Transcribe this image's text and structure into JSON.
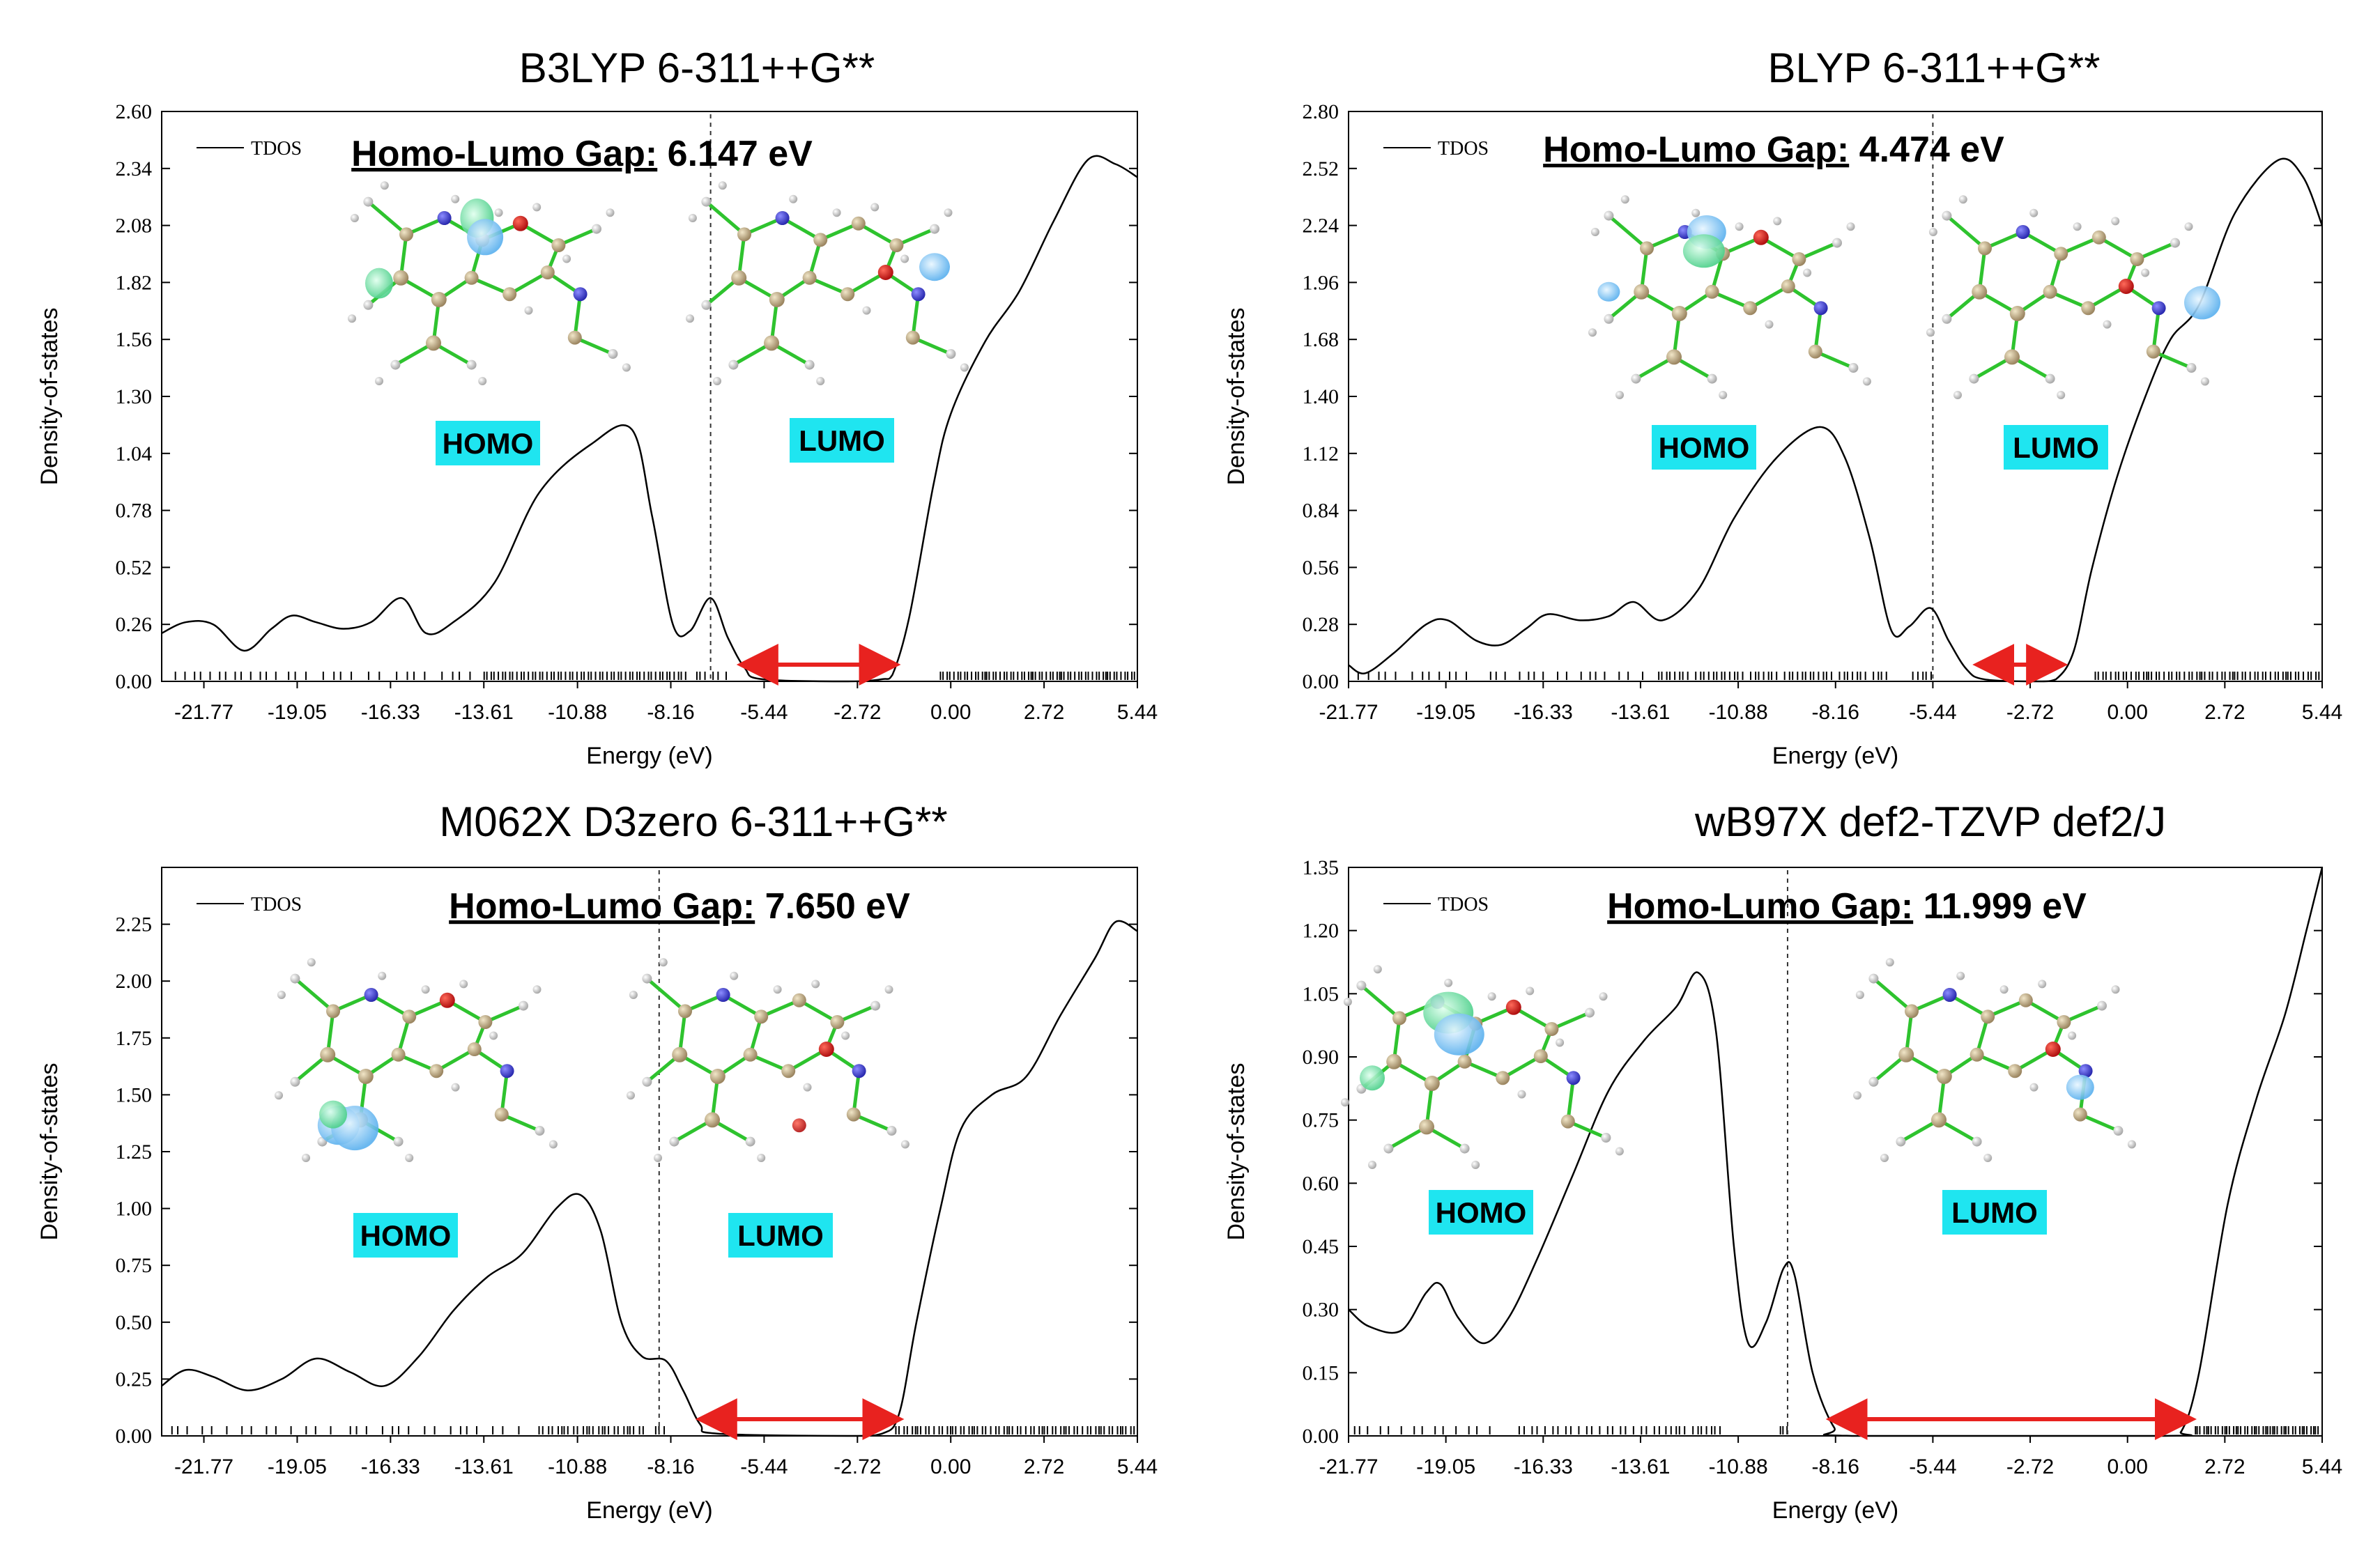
{
  "chart_data": [
    {
      "type": "line",
      "title": "B3LYP 6-311++G**",
      "xlabel": "Energy (eV)",
      "ylabel": "Density-of-states",
      "legend": "TDOS",
      "legend_position": "top-left",
      "xlim": [
        -23.0,
        5.44
      ],
      "ylim": [
        0,
        2.6
      ],
      "x_ticks": [
        "-21.77",
        "-19.05",
        "-16.33",
        "-13.61",
        "-10.88",
        "-8.16",
        "-5.44",
        "-2.72",
        "0.00",
        "2.72",
        "5.44"
      ],
      "y_ticks": [
        "0.00",
        "0.26",
        "0.52",
        "0.78",
        "1.04",
        "1.30",
        "1.56",
        "1.82",
        "2.08",
        "2.34",
        "2.60"
      ],
      "gap_prefix": "Homo-Lumo Gap:",
      "gap_value": "6.147 eV",
      "homo_label": "HOMO",
      "lumo_label": "LUMO",
      "homo_energy": -7.0,
      "arrow": [
        -6.0,
        -1.7
      ],
      "points": [
        [
          -23,
          0.22
        ],
        [
          -22.3,
          0.27
        ],
        [
          -21.5,
          0.26
        ],
        [
          -20.6,
          0.14
        ],
        [
          -19.8,
          0.24
        ],
        [
          -19.2,
          0.3
        ],
        [
          -18.5,
          0.27
        ],
        [
          -17.7,
          0.24
        ],
        [
          -16.9,
          0.27
        ],
        [
          -16.0,
          0.38
        ],
        [
          -15.3,
          0.22
        ],
        [
          -14.5,
          0.27
        ],
        [
          -13.3,
          0.45
        ],
        [
          -12.0,
          0.86
        ],
        [
          -10.5,
          1.08
        ],
        [
          -9.3,
          1.15
        ],
        [
          -8.7,
          0.75
        ],
        [
          -8.1,
          0.26
        ],
        [
          -7.6,
          0.23
        ],
        [
          -7.0,
          0.38
        ],
        [
          -6.5,
          0.2
        ],
        [
          -6.0,
          0.06
        ],
        [
          -5.5,
          0.01
        ],
        [
          -3.0,
          0.0
        ],
        [
          -2.0,
          0.01
        ],
        [
          -1.7,
          0.03
        ],
        [
          -1.2,
          0.3
        ],
        [
          -0.5,
          0.9
        ],
        [
          0.0,
          1.22
        ],
        [
          1.0,
          1.55
        ],
        [
          2.0,
          1.78
        ],
        [
          3.0,
          2.1
        ],
        [
          4.0,
          2.38
        ],
        [
          4.8,
          2.36
        ],
        [
          5.44,
          2.3
        ]
      ],
      "stick_ranges": [
        [
          -22.6,
          -19.5,
          13
        ],
        [
          -19.3,
          -13.7,
          17
        ],
        [
          -13.6,
          -7.6,
          55
        ],
        [
          -7.4,
          -6.4,
          6
        ],
        [
          -0.3,
          5.4,
          60
        ]
      ]
    },
    {
      "type": "line",
      "title": "BLYP 6-311++G**",
      "xlabel": "Energy (eV)",
      "ylabel": "Density-of-states",
      "legend": "TDOS",
      "legend_position": "top-left",
      "xlim": [
        -21.77,
        5.44
      ],
      "ylim": [
        0,
        2.8
      ],
      "x_ticks": [
        "-21.77",
        "-19.05",
        "-16.33",
        "-13.61",
        "-10.88",
        "-8.16",
        "-5.44",
        "-2.72",
        "0.00",
        "2.72",
        "5.44"
      ],
      "y_ticks": [
        "0.00",
        "0.28",
        "0.56",
        "0.84",
        "1.12",
        "1.40",
        "1.68",
        "1.96",
        "2.24",
        "2.52",
        "2.80"
      ],
      "gap_prefix": "Homo-Lumo Gap:",
      "gap_value": "4.474 eV",
      "homo_label": "HOMO",
      "lumo_label": "LUMO",
      "homo_energy": -5.44,
      "arrow": [
        -4.1,
        -1.9
      ],
      "points": [
        [
          -21.77,
          0.08
        ],
        [
          -21.3,
          0.04
        ],
        [
          -20.5,
          0.14
        ],
        [
          -19.6,
          0.28
        ],
        [
          -19.0,
          0.3
        ],
        [
          -18.2,
          0.2
        ],
        [
          -17.5,
          0.18
        ],
        [
          -16.8,
          0.26
        ],
        [
          -16.2,
          0.33
        ],
        [
          -15.3,
          0.3
        ],
        [
          -14.5,
          0.32
        ],
        [
          -13.8,
          0.39
        ],
        [
          -13.0,
          0.3
        ],
        [
          -12.0,
          0.45
        ],
        [
          -11.0,
          0.8
        ],
        [
          -9.8,
          1.1
        ],
        [
          -8.6,
          1.25
        ],
        [
          -7.9,
          1.1
        ],
        [
          -7.2,
          0.7
        ],
        [
          -6.6,
          0.25
        ],
        [
          -6.1,
          0.27
        ],
        [
          -5.5,
          0.36
        ],
        [
          -5.0,
          0.2
        ],
        [
          -4.5,
          0.06
        ],
        [
          -4.0,
          0.01
        ],
        [
          -2.5,
          0.0
        ],
        [
          -2.0,
          0.01
        ],
        [
          -1.5,
          0.15
        ],
        [
          -1.0,
          0.55
        ],
        [
          -0.3,
          1.0
        ],
        [
          0.5,
          1.4
        ],
        [
          1.2,
          1.68
        ],
        [
          2.0,
          1.85
        ],
        [
          3.0,
          2.3
        ],
        [
          4.2,
          2.56
        ],
        [
          4.9,
          2.48
        ],
        [
          5.44,
          2.24
        ]
      ],
      "stick_ranges": [
        [
          -21.5,
          -18.3,
          12
        ],
        [
          -17.8,
          -13.3,
          16
        ],
        [
          -13.1,
          -6.6,
          50
        ],
        [
          -6.0,
          -5.4,
          5
        ],
        [
          -0.9,
          5.4,
          60
        ]
      ]
    },
    {
      "type": "line",
      "title": "M062X D3zero 6-311++G**",
      "xlabel": "Energy (eV)",
      "ylabel": "Density-of-states",
      "legend": "TDOS",
      "legend_position": "top-left",
      "xlim": [
        -23.0,
        5.44
      ],
      "ylim": [
        0,
        2.5
      ],
      "x_ticks": [
        "-21.77",
        "-19.05",
        "-16.33",
        "-13.61",
        "-10.88",
        "-8.16",
        "-5.44",
        "-2.72",
        "0.00",
        "2.72",
        "5.44"
      ],
      "y_ticks": [
        "0.00",
        "0.25",
        "0.50",
        "0.75",
        "1.00",
        "1.25",
        "1.50",
        "1.75",
        "2.00",
        "2.25"
      ],
      "gap_prefix": "Homo-Lumo Gap:",
      "gap_value": "7.650 eV",
      "homo_label": "HOMO",
      "lumo_label": "LUMO",
      "homo_energy": -8.5,
      "arrow": [
        -7.2,
        -1.6
      ],
      "points": [
        [
          -23,
          0.22
        ],
        [
          -22.3,
          0.29
        ],
        [
          -21.5,
          0.26
        ],
        [
          -20.5,
          0.2
        ],
        [
          -19.5,
          0.25
        ],
        [
          -18.5,
          0.34
        ],
        [
          -17.5,
          0.28
        ],
        [
          -16.5,
          0.22
        ],
        [
          -15.5,
          0.35
        ],
        [
          -14.5,
          0.55
        ],
        [
          -13.5,
          0.7
        ],
        [
          -12.5,
          0.8
        ],
        [
          -11.5,
          1.0
        ],
        [
          -10.8,
          1.06
        ],
        [
          -10.2,
          0.9
        ],
        [
          -9.6,
          0.5
        ],
        [
          -9.0,
          0.35
        ],
        [
          -8.3,
          0.33
        ],
        [
          -7.8,
          0.2
        ],
        [
          -7.3,
          0.05
        ],
        [
          -6.8,
          0.01
        ],
        [
          -3.0,
          0.0
        ],
        [
          -2.0,
          0.01
        ],
        [
          -1.5,
          0.1
        ],
        [
          -1.0,
          0.5
        ],
        [
          -0.3,
          1.0
        ],
        [
          0.3,
          1.35
        ],
        [
          1.2,
          1.5
        ],
        [
          2.2,
          1.58
        ],
        [
          3.2,
          1.85
        ],
        [
          4.2,
          2.1
        ],
        [
          4.8,
          2.26
        ],
        [
          5.44,
          2.22
        ]
      ],
      "stick_ranges": [
        [
          -22.7,
          -17.8,
          14
        ],
        [
          -17.5,
          -12.3,
          16
        ],
        [
          -12.0,
          -8.9,
          26
        ],
        [
          -8.6,
          -8.2,
          3
        ],
        [
          -1.6,
          5.4,
          64
        ]
      ]
    },
    {
      "type": "line",
      "title": "wB97X def2-TZVP def2/J",
      "xlabel": "Energy (eV)",
      "ylabel": "Density-of-states",
      "legend": "TDOS",
      "legend_position": "top-left",
      "xlim": [
        -21.77,
        5.44
      ],
      "ylim": [
        0,
        1.35
      ],
      "x_ticks": [
        "-21.77",
        "-19.05",
        "-16.33",
        "-13.61",
        "-10.88",
        "-8.16",
        "-5.44",
        "-2.72",
        "0.00",
        "2.72",
        "5.44"
      ],
      "y_ticks": [
        "0.00",
        "0.15",
        "0.30",
        "0.45",
        "0.60",
        "0.75",
        "0.90",
        "1.05",
        "1.20",
        "1.35"
      ],
      "gap_prefix": "Homo-Lumo Gap:",
      "gap_value": "11.999 eV",
      "homo_label": "HOMO",
      "lumo_label": "LUMO",
      "homo_energy": -9.5,
      "arrow": [
        -8.2,
        1.7
      ],
      "points": [
        [
          -21.77,
          0.3
        ],
        [
          -21.2,
          0.26
        ],
        [
          -20.3,
          0.25
        ],
        [
          -19.6,
          0.34
        ],
        [
          -19.2,
          0.36
        ],
        [
          -18.7,
          0.28
        ],
        [
          -18.0,
          0.22
        ],
        [
          -17.3,
          0.28
        ],
        [
          -16.5,
          0.42
        ],
        [
          -15.5,
          0.62
        ],
        [
          -14.5,
          0.82
        ],
        [
          -13.5,
          0.94
        ],
        [
          -12.6,
          1.02
        ],
        [
          -12.0,
          1.1
        ],
        [
          -11.5,
          0.96
        ],
        [
          -11.0,
          0.45
        ],
        [
          -10.6,
          0.22
        ],
        [
          -10.1,
          0.27
        ],
        [
          -9.6,
          0.4
        ],
        [
          -9.3,
          0.38
        ],
        [
          -8.8,
          0.15
        ],
        [
          -8.2,
          0.02
        ],
        [
          -7.7,
          0.0
        ],
        [
          1.0,
          0.0
        ],
        [
          1.5,
          0.01
        ],
        [
          2.0,
          0.15
        ],
        [
          2.8,
          0.55
        ],
        [
          3.6,
          0.8
        ],
        [
          4.4,
          1.0
        ],
        [
          5.0,
          1.2
        ],
        [
          5.44,
          1.35
        ]
      ],
      "stick_ranges": [
        [
          -21.6,
          -17.6,
          14
        ],
        [
          -17.0,
          -13.0,
          22
        ],
        [
          -12.9,
          -11.3,
          12
        ],
        [
          -9.7,
          -9.4,
          3
        ],
        [
          1.9,
          5.4,
          44
        ]
      ]
    }
  ]
}
